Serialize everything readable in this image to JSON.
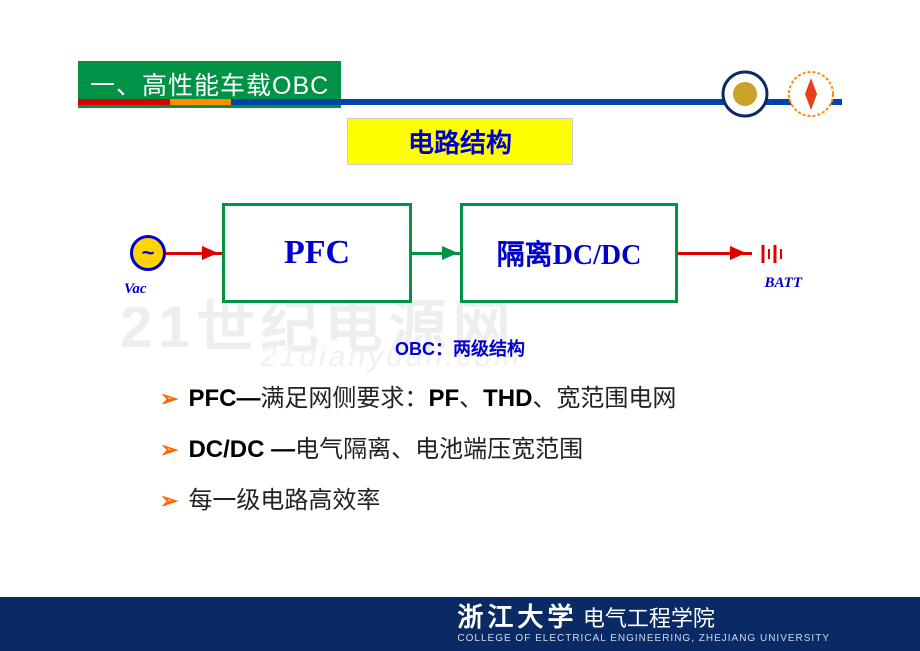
{
  "header": {
    "title": "一、高性能车载OBC",
    "title_bg": "#009245",
    "title_color": "#ffffff",
    "stripe_colors": [
      "#dc0000",
      "#ff8c00",
      "#0044aa"
    ],
    "stripe_widths_pct": [
      12,
      8,
      80
    ]
  },
  "logos": {
    "left": {
      "border": "#0a2a66",
      "inner": "#c9a227"
    },
    "right": {
      "border": "#ff8c00",
      "inner": "#e83e1b"
    }
  },
  "subtitle": {
    "text": "电路结构",
    "bg": "#ffff00",
    "color": "#0000cc",
    "fontsize": 26
  },
  "diagram": {
    "type": "flowchart",
    "ac_label": "Vac",
    "ac_symbol": "~",
    "batt_label": "BATT",
    "nodes": [
      {
        "id": "pfc",
        "label": "PFC",
        "border": "#009245",
        "text_color": "#0000cc"
      },
      {
        "id": "dcdc",
        "label": "隔离DC/DC",
        "border": "#009245",
        "text_color": "#0000cc"
      }
    ],
    "edges": [
      {
        "from": "ac",
        "to": "pfc",
        "color": "#dc0000"
      },
      {
        "from": "pfc",
        "to": "dcdc",
        "color": "#009245"
      },
      {
        "from": "dcdc",
        "to": "batt",
        "color": "#dc0000"
      }
    ],
    "caption": "OBC：两级结构",
    "caption_color": "#0000cc",
    "ac_circle": {
      "border": "#0000cc",
      "fill": "#ffd400"
    },
    "batt_color": "#dc0000"
  },
  "watermark": {
    "line1": "21世纪电源网",
    "line2": "21dianyuan.com",
    "color": "#eeeeee"
  },
  "bullets": {
    "chevron_color": "#ff6600",
    "items": [
      {
        "html": "PFC—满足网侧要求：PF、THD、宽范围电网"
      },
      {
        "html": "DC/DC —电气隔离、电池端压宽范围"
      },
      {
        "html": "每一级电路高效率"
      }
    ]
  },
  "footer": {
    "bg": "#0a2a66",
    "uni_cn": "浙江大学",
    "dept_cn": "电气工程学院",
    "en": "COLLEGE OF ELECTRICAL ENGINEERING, ZHEJIANG UNIVERSITY",
    "text_color": "#ffffff"
  }
}
